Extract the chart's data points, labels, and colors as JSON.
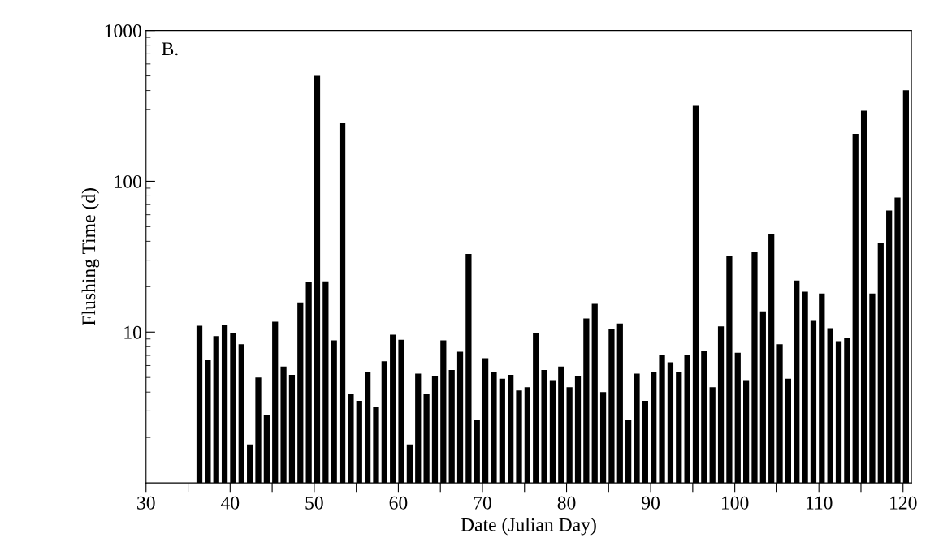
{
  "chart_data": {
    "type": "bar",
    "xlabel": "Date (Julian Day)",
    "ylabel": "Flushing Time (d)",
    "annotations": [
      "B."
    ],
    "x": [
      36,
      37,
      38,
      39,
      40,
      41,
      42,
      43,
      44,
      45,
      46,
      47,
      48,
      49,
      50,
      51,
      52,
      53,
      54,
      55,
      56,
      57,
      58,
      59,
      60,
      61,
      62,
      63,
      64,
      65,
      66,
      67,
      68,
      69,
      70,
      71,
      72,
      73,
      74,
      75,
      76,
      77,
      78,
      79,
      80,
      81,
      82,
      83,
      84,
      85,
      86,
      87,
      88,
      89,
      90,
      91,
      92,
      93,
      94,
      95,
      96,
      97,
      98,
      99,
      100,
      101,
      102,
      103,
      104,
      105,
      106,
      107,
      108,
      109,
      110,
      111,
      112,
      113,
      114,
      115,
      116,
      117,
      118,
      119,
      120
    ],
    "series": [
      {
        "color": "#000000",
        "values": [
          11.0,
          6.5,
          9.4,
          11.2,
          9.8,
          8.3,
          1.8,
          5.0,
          2.8,
          11.7,
          5.9,
          5.2,
          15.7,
          21.5,
          500,
          21.7,
          8.8,
          245,
          3.9,
          3.5,
          5.4,
          3.2,
          6.4,
          9.6,
          8.9,
          1.8,
          5.3,
          3.9,
          5.1,
          8.8,
          5.6,
          7.4,
          33,
          2.6,
          6.7,
          5.4,
          4.9,
          5.2,
          4.1,
          4.3,
          9.8,
          5.6,
          4.8,
          5.9,
          4.3,
          5.1,
          12.3,
          15.4,
          4.0,
          10.5,
          11.4,
          2.6,
          5.3,
          3.5,
          5.4,
          7.1,
          6.3,
          5.4,
          7.0,
          316,
          7.5,
          4.3,
          10.9,
          32,
          7.3,
          4.8,
          34,
          13.7,
          45,
          8.3,
          4.9,
          22,
          18.5,
          12.0,
          18.0,
          10.6,
          8.7,
          9.2,
          206,
          294,
          18.0,
          39,
          64,
          78,
          402
        ]
      }
    ],
    "log": "y",
    "ylim": [
      1,
      1000
    ],
    "yticks": [
      10,
      100,
      1000
    ],
    "xlim": [
      30,
      121
    ],
    "xticks": [
      30,
      {
        "value": 35,
        "label": null
      },
      40,
      {
        "value": 45,
        "label": null
      },
      50,
      {
        "value": 55,
        "label": null
      },
      60,
      {
        "value": 65,
        "label": null
      },
      70,
      {
        "value": 75,
        "label": null
      },
      80,
      {
        "value": 85,
        "label": null
      },
      90,
      {
        "value": 95,
        "label": null
      },
      100,
      {
        "value": 105,
        "label": null
      },
      110,
      {
        "value": 115,
        "label": null
      },
      120
    ],
    "grid": false
  }
}
